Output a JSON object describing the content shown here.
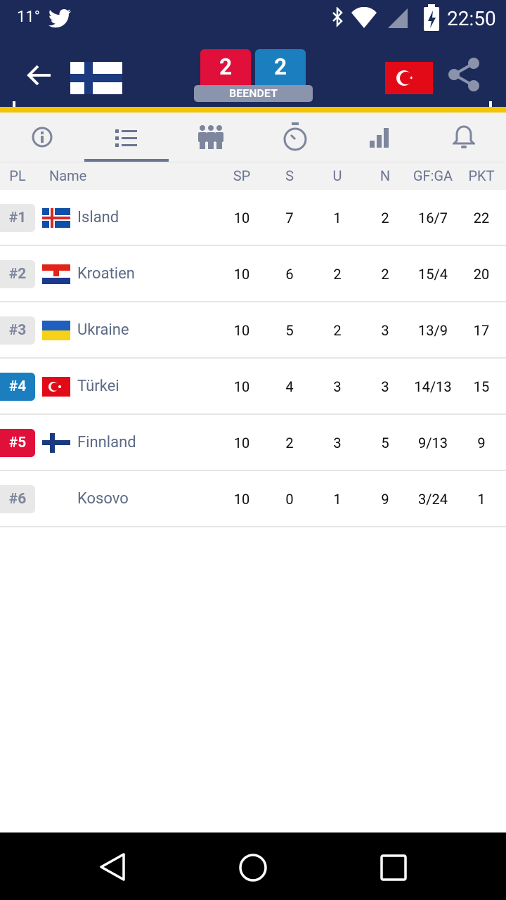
{
  "status_bar": {
    "temperature": "11°",
    "time": "22:50"
  },
  "match": {
    "home_score": "2",
    "away_score": "2",
    "status": "BEENDET"
  },
  "table": {
    "columns": [
      "PL",
      "Name",
      "SP",
      "S",
      "U",
      "N",
      "GF:GA",
      "PKT"
    ],
    "rows": [
      [
        "#1",
        "Island",
        "10",
        "7",
        "1",
        "2",
        "16/7",
        "22"
      ],
      [
        "#2",
        "Kroatien",
        "10",
        "6",
        "2",
        "2",
        "15/4",
        "20"
      ],
      [
        "#3",
        "Ukraine",
        "10",
        "5",
        "2",
        "3",
        "13/9",
        "17"
      ],
      [
        "#4",
        "Türkei",
        "10",
        "4",
        "3",
        "3",
        "14/13",
        "15"
      ],
      [
        "#5",
        "Finnland",
        "10",
        "2",
        "3",
        "5",
        "9/13",
        "9"
      ],
      [
        "#6",
        "Kosovo",
        "10",
        "0",
        "1",
        "9",
        "3/24",
        "1"
      ]
    ]
  }
}
